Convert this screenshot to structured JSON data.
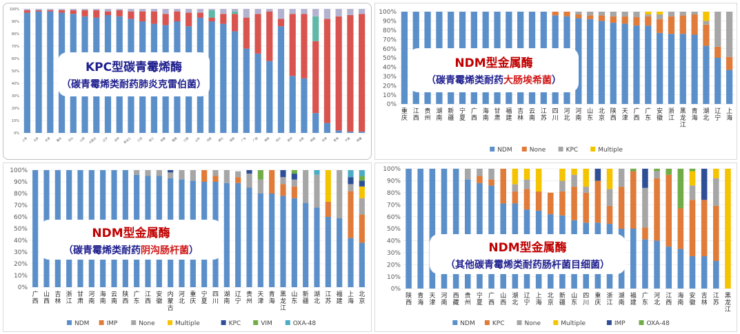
{
  "colors": {
    "NDM": "#5b8fc9",
    "KPC": "#e07b39",
    "None": "#a6a6a6",
    "Multiple": "#f5c400",
    "IMP": "#2e4f96",
    "VIM": "#70ad47",
    "OXA-48": "#4bacc6",
    "KPC_p0": "#d9534f",
    "IMP_p0": "#5fb8a8",
    "Multiple_p0": "#b3b3d1",
    "extra_p0": "#f5d76e",
    "IMP_p2": "#e07b39",
    "KPC_p3": "#e07b39",
    "IMP_p3": "#2e4f96"
  },
  "overlays": [
    {
      "line1": "KPC型碳青霉烯酶",
      "line2_pre": "（碳青霉烯类耐药",
      "line2_hl": "肺炎克雷伯菌",
      "line2_post": "）"
    },
    {
      "line1": "NDM型金属酶",
      "line2_pre": "（碳青霉烯类耐药",
      "line2_hl": "大肠埃希菌",
      "line2_post": "）"
    },
    {
      "line1": "NDM型金属酶",
      "line2_pre": "（碳青霉烯类耐药",
      "line2_hl": "阴沟肠杆菌",
      "line2_post": "）"
    },
    {
      "line1": "NDM型金属酶",
      "line2_pre": "（其他碳青霉烯类耐药肠杆菌目细菌）",
      "line2_hl": "",
      "line2_post": ""
    }
  ],
  "chart_data": [
    {
      "type": "bar",
      "stacked": true,
      "yticks": [
        "0%",
        "10%",
        "20%",
        "30%",
        "40%",
        "50%",
        "60%",
        "70%",
        "80%",
        "90%",
        "100%"
      ],
      "ylim": [
        0,
        100
      ],
      "categories": [
        "上海",
        "北京",
        "天津",
        "重庆",
        "河北",
        "山西",
        "内蒙古",
        "辽宁",
        "吉林",
        "黑龙江",
        "江苏",
        "浙江",
        "安徽",
        "福建",
        "江西",
        "山东",
        "河南",
        "湖北",
        "湖南",
        "广东",
        "广西",
        "海南",
        "四川",
        "贵州",
        "云南",
        "陕西",
        "甘肃",
        "青海",
        "宁夏",
        "新疆"
      ],
      "series": [
        {
          "name": "NDM",
          "values": [
            97,
            98,
            98,
            97,
            96,
            94,
            93,
            95,
            94,
            92,
            90,
            88,
            87,
            90,
            86,
            93,
            90,
            88,
            82,
            68,
            64,
            58,
            86,
            46,
            44,
            16,
            8,
            2,
            1,
            1
          ]
        },
        {
          "name": "KPC",
          "values": [
            2,
            1,
            1,
            2,
            3,
            5,
            6,
            3,
            5,
            6,
            8,
            10,
            9,
            8,
            11,
            4,
            3,
            8,
            14,
            25,
            32,
            40,
            6,
            50,
            52,
            58,
            84,
            92,
            94,
            95
          ]
        },
        {
          "name": "IMP",
          "values": [
            0,
            0,
            0,
            0,
            0,
            0,
            0,
            0,
            0,
            0,
            0,
            0,
            0,
            0,
            0,
            0,
            6,
            0,
            2,
            0,
            0,
            0,
            0,
            0,
            0,
            20,
            0,
            0,
            0,
            0
          ]
        },
        {
          "name": "Multiple",
          "values": [
            1,
            1,
            1,
            1,
            1,
            1,
            1,
            2,
            1,
            2,
            2,
            2,
            4,
            2,
            3,
            3,
            1,
            4,
            2,
            7,
            4,
            2,
            8,
            4,
            4,
            6,
            8,
            6,
            5,
            4
          ]
        }
      ],
      "legend": []
    },
    {
      "type": "bar",
      "stacked": true,
      "yticks": [
        "0%",
        "10%",
        "20%",
        "30%",
        "40%",
        "50%",
        "60%",
        "70%",
        "80%",
        "90%",
        "100%"
      ],
      "ylim": [
        0,
        100
      ],
      "categories": [
        "重庆",
        "江西",
        "贵州",
        "湖南",
        "新疆",
        "宁夏",
        "广西",
        "海南",
        "甘肃",
        "福建",
        "吉林",
        "云南",
        "江苏",
        "四川",
        "河北",
        "河南",
        "山东",
        "北京",
        "陕西",
        "天津",
        "广西",
        "广东",
        "安徽",
        "浙江",
        "黑龙江",
        "青海",
        "湖北",
        "辽宁",
        "上海"
      ],
      "series": [
        {
          "name": "NDM",
          "values": [
            100,
            100,
            100,
            100,
            100,
            100,
            100,
            100,
            100,
            100,
            100,
            100,
            100,
            96,
            95,
            93,
            92,
            90,
            88,
            87,
            85,
            85,
            77,
            76,
            76,
            75,
            63,
            50,
            37
          ]
        },
        {
          "name": "None",
          "values": [
            0,
            0,
            0,
            0,
            0,
            0,
            0,
            0,
            0,
            0,
            0,
            0,
            0,
            4,
            5,
            4,
            4,
            6,
            7,
            8,
            9,
            10,
            15,
            19,
            20,
            22,
            23,
            12,
            14
          ]
        },
        {
          "name": "KPC",
          "values": [
            0,
            0,
            0,
            0,
            0,
            0,
            0,
            0,
            0,
            0,
            0,
            0,
            0,
            0,
            0,
            3,
            4,
            4,
            5,
            5,
            6,
            2,
            5,
            5,
            4,
            3,
            4,
            38,
            49
          ]
        },
        {
          "name": "Multiple",
          "values": [
            0,
            0,
            0,
            0,
            0,
            0,
            0,
            0,
            0,
            0,
            0,
            0,
            0,
            0,
            0,
            0,
            0,
            0,
            0,
            0,
            0,
            3,
            3,
            0,
            0,
            0,
            10,
            0,
            0
          ]
        }
      ],
      "legend": [
        "NDM",
        "None",
        "KPC",
        "Multiple"
      ]
    },
    {
      "type": "bar",
      "stacked": true,
      "yticks": [
        "0%",
        "10%",
        "20%",
        "30%",
        "40%",
        "50%",
        "60%",
        "70%",
        "80%",
        "90%",
        "100%"
      ],
      "ylim": [
        0,
        100
      ],
      "categories": [
        "广西",
        "山西",
        "吉林",
        "浙江",
        "甘肃",
        "河南",
        "海南",
        "云南",
        "陕西",
        "广东",
        "江西",
        "安徽",
        "内蒙古",
        "河北",
        "重庆",
        "宁夏",
        "四川",
        "湖南",
        "辽宁",
        "贵州",
        "天津",
        "青海",
        "黑龙江",
        "山东",
        "新疆",
        "湖北",
        "江苏",
        "福建",
        "上海",
        "北京"
      ],
      "series": [
        {
          "name": "NDM",
          "values": [
            100,
            100,
            100,
            100,
            100,
            100,
            100,
            100,
            100,
            96,
            95,
            95,
            93,
            92,
            91,
            90,
            90,
            89,
            89,
            85,
            80,
            80,
            78,
            76,
            72,
            68,
            60,
            59,
            42,
            38
          ]
        },
        {
          "name": "IMP",
          "values": [
            0,
            0,
            0,
            0,
            0,
            0,
            0,
            0,
            0,
            0,
            0,
            0,
            0,
            0,
            0,
            10,
            5,
            0,
            5,
            0,
            0,
            20,
            10,
            10,
            0,
            0,
            13,
            0,
            40,
            24
          ]
        },
        {
          "name": "None",
          "values": [
            0,
            0,
            0,
            0,
            0,
            0,
            0,
            0,
            0,
            4,
            5,
            5,
            5,
            8,
            9,
            0,
            5,
            11,
            5,
            12,
            12,
            0,
            6,
            6,
            28,
            28,
            0,
            41,
            6,
            14
          ]
        },
        {
          "name": "Multiple",
          "values": [
            0,
            0,
            0,
            0,
            0,
            0,
            0,
            0,
            0,
            0,
            0,
            0,
            0,
            0,
            0,
            0,
            0,
            0,
            0,
            0,
            0,
            0,
            0,
            0,
            0,
            0,
            27,
            0,
            0,
            10
          ]
        },
        {
          "name": "KPC",
          "values": [
            0,
            0,
            0,
            0,
            0,
            0,
            0,
            0,
            0,
            0,
            0,
            0,
            2,
            0,
            0,
            0,
            0,
            0,
            0,
            3,
            0,
            0,
            6,
            5,
            0,
            0,
            0,
            0,
            6,
            5
          ]
        },
        {
          "name": "VIM",
          "values": [
            0,
            0,
            0,
            0,
            0,
            0,
            0,
            0,
            0,
            0,
            0,
            0,
            0,
            0,
            0,
            0,
            0,
            0,
            0,
            0,
            8,
            0,
            0,
            3,
            0,
            0,
            0,
            0,
            0,
            4
          ]
        },
        {
          "name": "OXA-48",
          "values": [
            0,
            0,
            0,
            0,
            0,
            0,
            0,
            0,
            0,
            0,
            0,
            0,
            0,
            0,
            0,
            0,
            0,
            0,
            0,
            0,
            0,
            0,
            0,
            0,
            0,
            4,
            0,
            0,
            6,
            5
          ]
        }
      ],
      "legend": [
        "NDM",
        "IMP",
        "None",
        "Multiple",
        "KPC",
        "VIM",
        "OXA-48"
      ]
    },
    {
      "type": "bar",
      "stacked": true,
      "yticks": [
        "0%",
        "10%",
        "20%",
        "30%",
        "40%",
        "50%",
        "60%",
        "70%",
        "80%",
        "90%",
        "100%"
      ],
      "ylim": [
        0,
        100
      ],
      "categories": [
        "陕西",
        "青海",
        "天津",
        "河南",
        "西藏",
        "贵州",
        "宁夏",
        "广西",
        "山西",
        "湖北",
        "辽宁",
        "上海",
        "北京",
        "新疆",
        "山东",
        "四川",
        "重庆",
        "浙江",
        "湖南",
        "福建",
        "广东",
        "河北",
        "江西",
        "海南",
        "安徽",
        "吉林",
        "江苏",
        "黑龙江"
      ],
      "series": [
        {
          "name": "NDM",
          "values": [
            100,
            100,
            100,
            100,
            100,
            91,
            88,
            86,
            71,
            71,
            66,
            65,
            62,
            61,
            57,
            55,
            55,
            54,
            50,
            50,
            41,
            40,
            35,
            33,
            27,
            27,
            23,
            0
          ]
        },
        {
          "name": "KPC",
          "values": [
            0,
            0,
            0,
            0,
            0,
            0,
            6,
            5,
            29,
            10,
            17,
            16,
            18,
            20,
            28,
            25,
            35,
            15,
            35,
            48,
            10,
            52,
            60,
            34,
            47,
            47,
            46,
            0
          ]
        },
        {
          "name": "None",
          "values": [
            0,
            0,
            0,
            0,
            0,
            9,
            6,
            9,
            0,
            6,
            8,
            0,
            0,
            9,
            10,
            5,
            0,
            14,
            15,
            0,
            33,
            6,
            0,
            0,
            12,
            0,
            23,
            0
          ]
        },
        {
          "name": "Multiple",
          "values": [
            0,
            0,
            0,
            0,
            0,
            0,
            0,
            0,
            0,
            13,
            9,
            19,
            0,
            10,
            5,
            15,
            0,
            17,
            0,
            0,
            0,
            0,
            0,
            0,
            12,
            0,
            8,
            100
          ]
        },
        {
          "name": "IMP",
          "values": [
            0,
            0,
            0,
            0,
            0,
            0,
            0,
            0,
            0,
            0,
            0,
            0,
            0,
            0,
            0,
            0,
            10,
            0,
            0,
            0,
            16,
            0,
            0,
            0,
            0,
            26,
            0,
            0
          ]
        },
        {
          "name": "OXA-48",
          "values": [
            0,
            0,
            0,
            0,
            0,
            0,
            0,
            0,
            0,
            0,
            0,
            0,
            0,
            0,
            0,
            0,
            0,
            0,
            0,
            2,
            0,
            2,
            5,
            33,
            2,
            0,
            0,
            0
          ]
        }
      ],
      "legend": [
        "NDM",
        "KPC",
        "None",
        "Multiple",
        "IMP",
        "OXA-48"
      ]
    }
  ]
}
